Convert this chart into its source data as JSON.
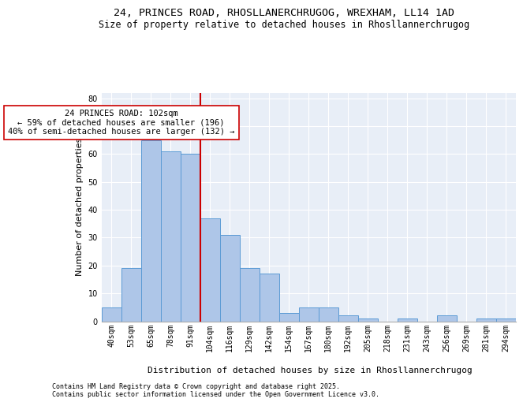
{
  "title1": "24, PRINCES ROAD, RHOSLLANERCHRUGOG, WREXHAM, LL14 1AD",
  "title2": "Size of property relative to detached houses in Rhosllannerchrugog",
  "xlabel": "Distribution of detached houses by size in Rhosllannerchrugog",
  "ylabel": "Number of detached properties",
  "categories": [
    "40sqm",
    "53sqm",
    "65sqm",
    "78sqm",
    "91sqm",
    "104sqm",
    "116sqm",
    "129sqm",
    "142sqm",
    "154sqm",
    "167sqm",
    "180sqm",
    "192sqm",
    "205sqm",
    "218sqm",
    "231sqm",
    "243sqm",
    "256sqm",
    "269sqm",
    "281sqm",
    "294sqm"
  ],
  "values": [
    5,
    19,
    65,
    61,
    60,
    37,
    31,
    19,
    17,
    3,
    5,
    5,
    2,
    1,
    0,
    1,
    0,
    2,
    0,
    1,
    1
  ],
  "bar_color": "#aec6e8",
  "bar_edge_color": "#5b9bd5",
  "vline_index": 5,
  "vline_color": "#cc0000",
  "annotation_text": "24 PRINCES ROAD: 102sqm\n← 59% of detached houses are smaller (196)\n40% of semi-detached houses are larger (132) →",
  "annotation_box_color": "#ffffff",
  "annotation_box_edge": "#cc0000",
  "ylim": [
    0,
    82
  ],
  "yticks": [
    0,
    10,
    20,
    30,
    40,
    50,
    60,
    70,
    80
  ],
  "background_color": "#e8eef7",
  "footer": "Contains HM Land Registry data © Crown copyright and database right 2025.\nContains public sector information licensed under the Open Government Licence v3.0.",
  "title1_fontsize": 9.5,
  "title2_fontsize": 8.5,
  "xlabel_fontsize": 8,
  "ylabel_fontsize": 8,
  "annotation_fontsize": 7.5,
  "footer_fontsize": 6,
  "tick_fontsize": 7
}
